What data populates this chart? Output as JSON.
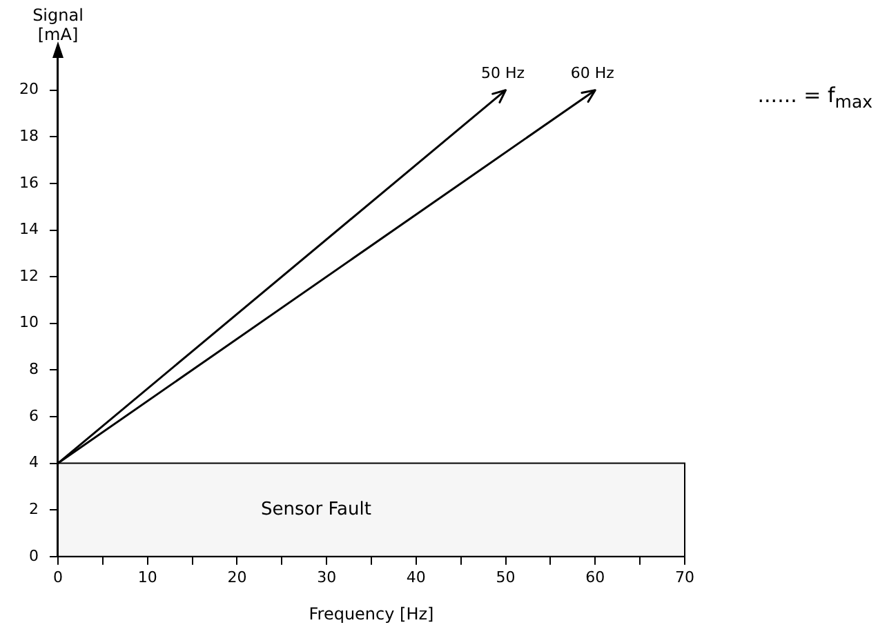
{
  "chart_data": {
    "type": "line",
    "xlabel": "Frequency [Hz]",
    "ylabel": "Signal [mA]",
    "xlim": [
      0,
      70
    ],
    "xticks": [
      0,
      {
        "value": 5,
        "label": null
      },
      10,
      {
        "value": 15,
        "label": null
      },
      20,
      {
        "value": 25,
        "label": null
      },
      30,
      {
        "value": 35,
        "label": null
      },
      40,
      {
        "value": 45,
        "label": null
      },
      50,
      {
        "value": 55,
        "label": null
      },
      60,
      {
        "value": 65,
        "label": null
      },
      70
    ],
    "ylim": [
      0,
      21.5
    ],
    "yticks": [
      0,
      2,
      4,
      6,
      8,
      10,
      12,
      14,
      16,
      18,
      20
    ],
    "series": [
      {
        "name": "50 Hz",
        "color": "#000000",
        "x": [
          0,
          50
        ],
        "values": [
          4,
          20
        ]
      },
      {
        "name": "60 Hz",
        "color": "#000000",
        "x": [
          0,
          60
        ],
        "values": [
          4,
          20
        ]
      }
    ],
    "bands": [
      {
        "axis": "y",
        "from": 0,
        "to": 4,
        "label": "Sensor Fault",
        "color": "#f6f6f6"
      }
    ],
    "annotations": [
      "...... = f$_{max}$"
    ],
    "grid": false,
    "legend": false,
    "marker": "none",
    "line_style": "solid"
  }
}
